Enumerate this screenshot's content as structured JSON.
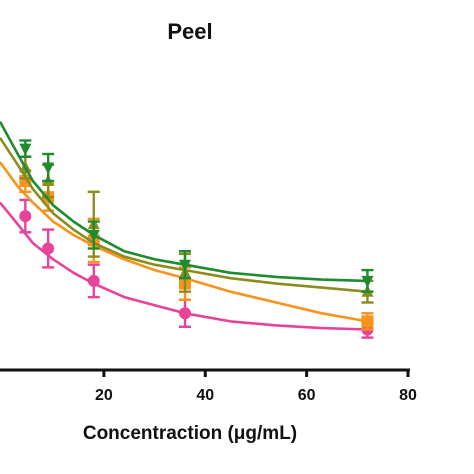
{
  "chart_data": {
    "type": "line",
    "title": "Peel",
    "xlabel": "Concentraction (μg/mL)",
    "ylabel": "",
    "xlim": [
      -0.5,
      80
    ],
    "x_ticks": [
      20,
      40,
      60,
      80
    ],
    "x_tick_labels": [
      "20",
      "40",
      "60",
      "80"
    ],
    "ylim": [
      0,
      100
    ],
    "legend": "none",
    "series": [
      {
        "color": "#e8429b",
        "marker": "circle",
        "x": [
          4.5,
          9,
          18,
          36,
          72
        ],
        "y": [
          57,
          45,
          33,
          21,
          15
        ],
        "err": [
          6,
          7,
          6,
          5,
          3
        ],
        "fit_x": [
          -0.5,
          3,
          6,
          10,
          14,
          18,
          24,
          30,
          36,
          45,
          54,
          63,
          72
        ],
        "fit_y": [
          62,
          54,
          47,
          41,
          36,
          32,
          27,
          24,
          21,
          18,
          16.5,
          15.5,
          15
        ]
      },
      {
        "color": "#f7941d",
        "marker": "square",
        "x": [
          4.5,
          9,
          18,
          36,
          72
        ],
        "y": [
          70,
          64,
          48,
          32,
          18
        ],
        "err": [
          4,
          5,
          8,
          6,
          3
        ],
        "fit_x": [
          -0.5,
          3,
          6,
          10,
          14,
          18,
          24,
          30,
          36,
          45,
          54,
          63,
          72
        ],
        "fit_y": [
          77,
          68,
          62,
          55,
          50,
          46,
          41,
          37,
          34,
          29,
          25,
          21,
          18
        ]
      },
      {
        "color": "#8c8c1e",
        "marker": "triangle-up",
        "x": [
          4.5,
          9,
          18,
          36,
          72
        ],
        "y": [
          75,
          70,
          54,
          36,
          29
        ],
        "err": [
          4,
          6,
          12,
          7,
          4
        ],
        "fit_x": [
          -0.5,
          3,
          6,
          10,
          14,
          18,
          24,
          30,
          36,
          45,
          54,
          63,
          72
        ],
        "fit_y": [
          86,
          76,
          67,
          58,
          52,
          47,
          42,
          39,
          37,
          34,
          32,
          30.5,
          29
        ]
      },
      {
        "color": "#1e8c2e",
        "marker": "triangle-down",
        "x": [
          4.5,
          9,
          18,
          36,
          72
        ],
        "y": [
          82,
          75,
          50,
          39,
          33
        ],
        "err": [
          3,
          5,
          5,
          5,
          4
        ],
        "fit_x": [
          -0.5,
          3,
          6,
          10,
          14,
          18,
          24,
          30,
          36,
          45,
          54,
          63,
          72
        ],
        "fit_y": [
          92,
          80,
          70,
          61,
          55,
          50,
          44,
          41,
          39,
          36,
          34.5,
          33.5,
          33
        ]
      }
    ]
  }
}
